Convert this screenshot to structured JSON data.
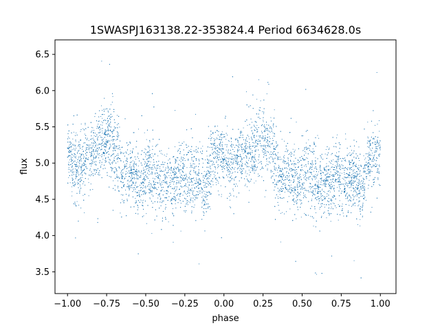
{
  "chart_data": {
    "type": "scatter",
    "title": "1SWASPJ163138.22-353824.4 Period 6634628.0s",
    "xlabel": "phase",
    "ylabel": "flux",
    "xlim": [
      -1.08,
      1.1
    ],
    "ylim": [
      3.2,
      6.7
    ],
    "xticks": [
      -1.0,
      -0.75,
      -0.5,
      -0.25,
      0.0,
      0.25,
      0.5,
      0.75,
      1.0
    ],
    "xtick_labels": [
      "−1.00",
      "−0.75",
      "−0.50",
      "−0.25",
      "0.00",
      "0.25",
      "0.50",
      "0.75",
      "1.00"
    ],
    "yticks": [
      3.5,
      4.0,
      4.5,
      5.0,
      5.5,
      6.0,
      6.5
    ],
    "ytick_labels": [
      "3.5",
      "4.0",
      "4.5",
      "5.0",
      "5.5",
      "6.0",
      "6.5"
    ],
    "grid": false,
    "marker_color": "#1f77b4",
    "series": [
      {
        "x": [
          -1.0,
          -0.98,
          -0.96,
          -0.94,
          -0.92,
          -0.9,
          -0.88,
          -0.86,
          -0.84,
          -0.82,
          -0.8,
          -0.78,
          -0.76,
          -0.74,
          -0.72,
          -0.7,
          -0.68,
          -0.66,
          -0.64,
          -0.62,
          -0.6,
          -0.58,
          -0.56,
          -0.54,
          -0.52,
          -0.5,
          -0.48,
          -0.46,
          -0.44,
          -0.42,
          -0.4,
          -0.38,
          -0.36,
          -0.34,
          -0.32,
          -0.3,
          -0.28,
          -0.26,
          -0.24,
          -0.22,
          -0.2,
          -0.18,
          -0.16,
          -0.14,
          -0.12,
          -0.1,
          -0.08,
          -0.06,
          -0.04,
          -0.02,
          0.0,
          0.02,
          0.04,
          0.06,
          0.08,
          0.1,
          0.12,
          0.14,
          0.16,
          0.18,
          0.2,
          0.22,
          0.24,
          0.26,
          0.28,
          0.3,
          0.32,
          0.34,
          0.36,
          0.38,
          0.4,
          0.42,
          0.44,
          0.46,
          0.48,
          0.5,
          0.52,
          0.54,
          0.56,
          0.58,
          0.6,
          0.62,
          0.64,
          0.66,
          0.68,
          0.7,
          0.72,
          0.74,
          0.76,
          0.78,
          0.8,
          0.82,
          0.84,
          0.86,
          0.88,
          0.9,
          0.92,
          0.94,
          0.96,
          0.98,
          1.0
        ],
        "y": [
          5.2,
          5.05,
          5.0,
          4.95,
          5.0,
          5.05,
          5.1,
          5.1,
          5.1,
          5.15,
          5.2,
          5.3,
          5.35,
          5.35,
          5.3,
          5.25,
          5.1,
          4.9,
          4.8,
          4.85,
          4.9,
          4.85,
          4.8,
          4.75,
          4.7,
          4.85,
          4.9,
          4.85,
          4.8,
          4.75,
          4.7,
          4.7,
          4.72,
          4.75,
          4.75,
          4.75,
          4.8,
          4.8,
          4.75,
          4.75,
          4.8,
          4.8,
          4.75,
          4.7,
          4.6,
          4.85,
          5.0,
          5.1,
          5.1,
          5.05,
          5.2,
          5.05,
          5.0,
          4.95,
          5.0,
          5.05,
          5.1,
          5.1,
          5.1,
          5.15,
          5.2,
          5.3,
          5.35,
          5.35,
          5.3,
          5.25,
          5.1,
          4.9,
          4.8,
          4.85,
          4.9,
          4.85,
          4.8,
          4.75,
          4.7,
          4.85,
          4.9,
          4.85,
          4.8,
          4.75,
          4.7,
          4.7,
          4.72,
          4.75,
          4.75,
          4.75,
          4.8,
          4.8,
          4.75,
          4.75,
          4.8,
          4.8,
          4.75,
          4.7,
          4.6,
          4.85,
          5.0,
          5.1,
          5.1,
          5.05,
          5.2
        ],
        "scatter_sd": [
          0.25,
          0.28,
          0.3,
          0.3,
          0.28,
          0.28,
          0.27,
          0.28,
          0.28,
          0.27,
          0.28,
          0.3,
          0.3,
          0.3,
          0.35,
          0.35,
          0.35,
          0.3,
          0.28,
          0.27,
          0.27,
          0.28,
          0.28,
          0.27,
          0.27,
          0.3,
          0.3,
          0.32,
          0.33,
          0.33,
          0.32,
          0.3,
          0.28,
          0.28,
          0.28,
          0.28,
          0.28,
          0.28,
          0.28,
          0.28,
          0.28,
          0.28,
          0.28,
          0.28,
          0.28,
          0.3,
          0.3,
          0.3,
          0.28,
          0.27,
          0.25,
          0.28,
          0.3,
          0.3,
          0.28,
          0.28,
          0.27,
          0.28,
          0.28,
          0.27,
          0.28,
          0.3,
          0.3,
          0.3,
          0.35,
          0.35,
          0.35,
          0.3,
          0.28,
          0.27,
          0.27,
          0.28,
          0.28,
          0.27,
          0.27,
          0.3,
          0.3,
          0.32,
          0.33,
          0.33,
          0.32,
          0.3,
          0.28,
          0.28,
          0.28,
          0.28,
          0.28,
          0.28,
          0.28,
          0.28,
          0.28,
          0.28,
          0.28,
          0.28,
          0.28,
          0.3,
          0.3,
          0.3,
          0.28,
          0.27,
          0.25
        ]
      }
    ]
  }
}
